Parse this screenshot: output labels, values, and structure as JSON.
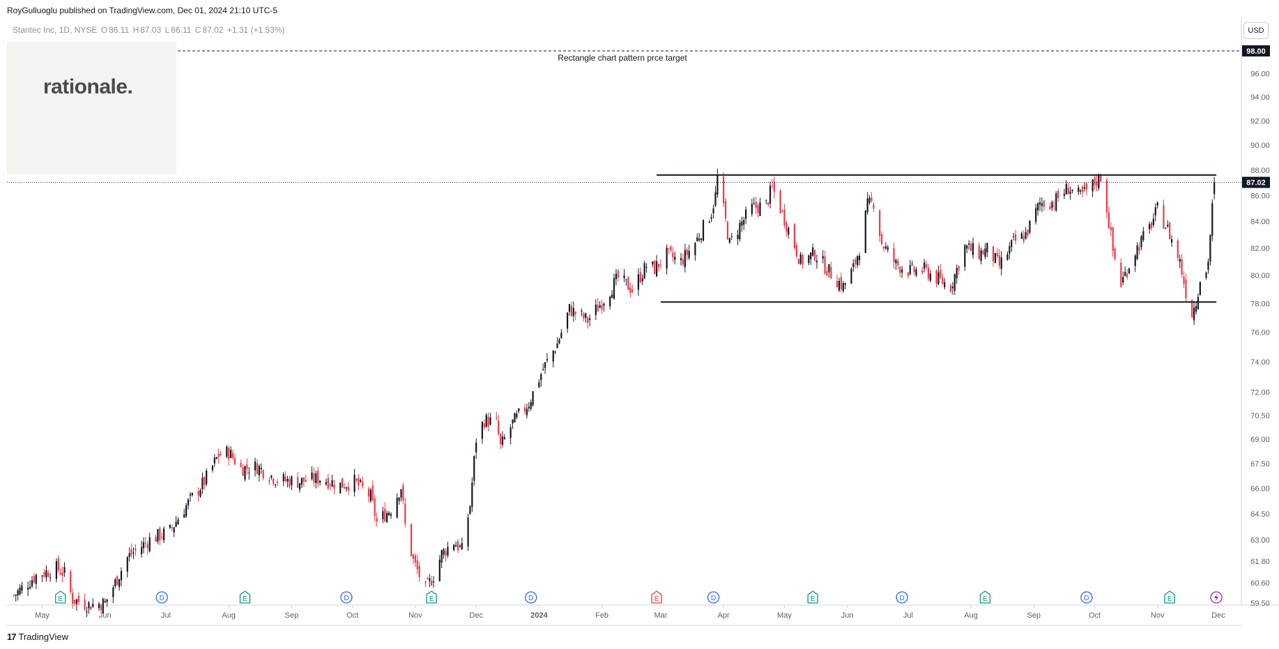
{
  "header": {
    "publisher": "RoyGulluoglu published on TradingView.com, Dec 01, 2024 21:10 UTC-5"
  },
  "legend": {
    "symbol": "Stantec Inc, 1D, NYSE",
    "open_label": "O",
    "open": "86.11",
    "high_label": "H",
    "high": "87.03",
    "low_label": "L",
    "low": "86.11",
    "close_label": "C",
    "close": "87.02",
    "change": "+1.31 (+1.53%)"
  },
  "watermark": {
    "text": "rationale."
  },
  "currency_button": "USD",
  "footer": {
    "logo": "17",
    "brand": "TradingView"
  },
  "colors": {
    "up": "#089981",
    "down": "#f23645",
    "candle": "#131722",
    "axis_text": "#5d606b"
  },
  "chart_data": {
    "type": "candlestick",
    "title": "",
    "y_ticks": [
      "59.50",
      "60.60",
      "61.80",
      "63.00",
      "64.50",
      "66.00",
      "67.50",
      "69.00",
      "70.50",
      "72.00",
      "74.00",
      "76.00",
      "78.00",
      "80.00",
      "82.00",
      "84.00",
      "86.00",
      "88.00",
      "90.00",
      "92.00",
      "94.00",
      "96.00"
    ],
    "x_ticks": [
      "May",
      "Jun",
      "Jul",
      "Aug",
      "Sep",
      "Oct",
      "Nov",
      "Dec",
      "2024",
      "Feb",
      "Mar",
      "Apr",
      "May",
      "Jun",
      "Jul",
      "Aug",
      "Sep",
      "Oct",
      "Nov",
      "Dec"
    ],
    "x_range": [
      "2023-04-15",
      "2024-12-01"
    ],
    "price_range_approx": [
      59.0,
      99.0
    ],
    "scale": "log",
    "last_price_label": "87.02",
    "target_price_label": "98.00",
    "annotation": "Rectangle chart pattern prce target",
    "horizontal_lines": [
      {
        "name": "resistance",
        "value": 87.6,
        "from": "2024-02-28",
        "to": "2024-11-30"
      },
      {
        "name": "support",
        "value": 78.1,
        "from": "2024-03-01",
        "to": "2024-11-30"
      },
      {
        "name": "target",
        "value": 98.0,
        "style": "dashed"
      }
    ],
    "events": [
      {
        "date": "2023-05-10",
        "type": "E"
      },
      {
        "date": "2023-06-29",
        "type": "D"
      },
      {
        "date": "2023-08-09",
        "type": "E"
      },
      {
        "date": "2023-09-28",
        "type": "D"
      },
      {
        "date": "2023-11-09",
        "type": "E"
      },
      {
        "date": "2023-12-28",
        "type": "D"
      },
      {
        "date": "2024-02-28",
        "type": "E",
        "negative": true
      },
      {
        "date": "2024-03-27",
        "type": "D"
      },
      {
        "date": "2024-05-15",
        "type": "E"
      },
      {
        "date": "2024-06-28",
        "type": "D"
      },
      {
        "date": "2024-08-08",
        "type": "E"
      },
      {
        "date": "2024-09-27",
        "type": "D"
      },
      {
        "date": "2024-11-07",
        "type": "E"
      },
      {
        "date": "2024-11-30",
        "type": "split"
      }
    ],
    "close_path": [
      [
        "2023-04-17",
        59.9
      ],
      [
        "2023-04-28",
        61.0
      ],
      [
        "2023-05-08",
        61.4
      ],
      [
        "2023-05-12",
        61.1
      ],
      [
        "2023-05-16",
        59.7
      ],
      [
        "2023-05-24",
        59.4
      ],
      [
        "2023-06-01",
        59.5
      ],
      [
        "2023-06-06",
        60.6
      ],
      [
        "2023-06-12",
        62.0
      ],
      [
        "2023-06-23",
        63.0
      ],
      [
        "2023-07-03",
        63.5
      ],
      [
        "2023-07-10",
        64.8
      ],
      [
        "2023-07-20",
        66.4
      ],
      [
        "2023-07-27",
        68.0
      ],
      [
        "2023-08-01",
        68.2
      ],
      [
        "2023-08-07",
        67.2
      ],
      [
        "2023-08-15",
        67.3
      ],
      [
        "2023-08-25",
        66.5
      ],
      [
        "2023-09-05",
        66.4
      ],
      [
        "2023-09-15",
        66.6
      ],
      [
        "2023-09-25",
        66.2
      ],
      [
        "2023-10-02",
        66.4
      ],
      [
        "2023-10-10",
        65.5
      ],
      [
        "2023-10-13",
        64.0
      ],
      [
        "2023-10-20",
        64.8
      ],
      [
        "2023-10-25",
        66.1
      ],
      [
        "2023-10-27",
        63.8
      ],
      [
        "2023-10-31",
        61.8
      ],
      [
        "2023-11-06",
        60.2
      ],
      [
        "2023-11-10",
        61.0
      ],
      [
        "2023-11-14",
        62.2
      ],
      [
        "2023-11-20",
        62.9
      ],
      [
        "2023-11-24",
        62.4
      ],
      [
        "2023-11-28",
        65.0
      ],
      [
        "2023-12-01",
        69.0
      ],
      [
        "2023-12-05",
        70.2
      ],
      [
        "2023-12-11",
        70.0
      ],
      [
        "2023-12-13",
        68.5
      ],
      [
        "2023-12-19",
        70.0
      ],
      [
        "2023-12-27",
        71.3
      ],
      [
        "2024-01-03",
        73.5
      ],
      [
        "2024-01-10",
        75.2
      ],
      [
        "2024-01-16",
        77.6
      ],
      [
        "2024-01-25",
        76.8
      ],
      [
        "2024-01-31",
        77.9
      ],
      [
        "2024-02-09",
        79.8
      ],
      [
        "2024-02-16",
        79.0
      ],
      [
        "2024-02-23",
        80.7
      ],
      [
        "2024-02-27",
        80.5
      ],
      [
        "2024-03-04",
        81.5
      ],
      [
        "2024-03-11",
        81.0
      ],
      [
        "2024-03-18",
        82.4
      ],
      [
        "2024-03-26",
        84.7
      ],
      [
        "2024-03-28",
        86.0
      ],
      [
        "2024-03-29",
        87.4
      ],
      [
        "2024-04-04",
        82.3
      ],
      [
        "2024-04-09",
        83.7
      ],
      [
        "2024-04-15",
        85.0
      ],
      [
        "2024-04-22",
        85.3
      ],
      [
        "2024-04-25",
        86.6
      ],
      [
        "2024-05-02",
        83.8
      ],
      [
        "2024-05-09",
        81.0
      ],
      [
        "2024-05-16",
        81.6
      ],
      [
        "2024-05-23",
        80.3
      ],
      [
        "2024-05-30",
        79.2
      ],
      [
        "2024-06-04",
        80.5
      ],
      [
        "2024-06-07",
        82.0
      ],
      [
        "2024-06-11",
        85.2
      ],
      [
        "2024-06-14",
        85.5
      ],
      [
        "2024-06-18",
        82.4
      ],
      [
        "2024-06-25",
        80.8
      ],
      [
        "2024-07-02",
        80.3
      ],
      [
        "2024-07-09",
        80.4
      ],
      [
        "2024-07-15",
        79.8
      ],
      [
        "2024-07-22",
        79.2
      ],
      [
        "2024-07-29",
        82.1
      ],
      [
        "2024-08-05",
        81.6
      ],
      [
        "2024-08-09",
        81.9
      ],
      [
        "2024-08-15",
        80.7
      ],
      [
        "2024-08-22",
        82.4
      ],
      [
        "2024-08-28",
        83.0
      ],
      [
        "2024-09-04",
        85.4
      ],
      [
        "2024-09-11",
        85.5
      ],
      [
        "2024-09-18",
        86.6
      ],
      [
        "2024-09-24",
        85.9
      ],
      [
        "2024-09-30",
        86.8
      ],
      [
        "2024-10-04",
        87.5
      ],
      [
        "2024-10-07",
        85.0
      ],
      [
        "2024-10-10",
        81.8
      ],
      [
        "2024-10-14",
        79.4
      ],
      [
        "2024-10-21",
        81.8
      ],
      [
        "2024-10-28",
        83.5
      ],
      [
        "2024-11-01",
        84.9
      ],
      [
        "2024-11-06",
        83.4
      ],
      [
        "2024-11-12",
        81.0
      ],
      [
        "2024-11-15",
        78.8
      ],
      [
        "2024-11-18",
        77.3
      ],
      [
        "2024-11-20",
        78.2
      ],
      [
        "2024-11-22",
        79.8
      ],
      [
        "2024-11-25",
        80.2
      ],
      [
        "2024-11-26",
        81.2
      ],
      [
        "2024-11-27",
        83.0
      ],
      [
        "2024-11-29",
        87.02
      ]
    ]
  }
}
